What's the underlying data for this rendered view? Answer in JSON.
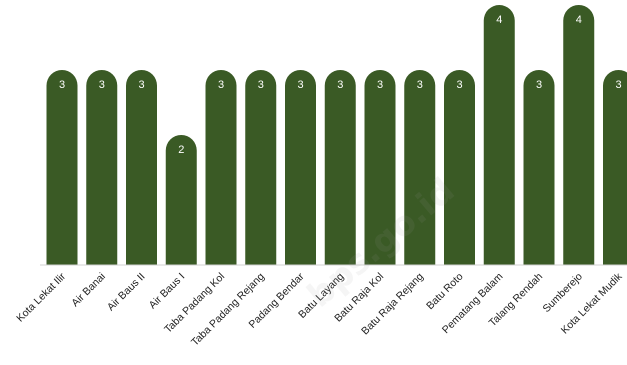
{
  "chart_data": {
    "type": "bar",
    "categories": [
      "Kota Lekat Ilir",
      "Air Banai",
      "Air Baus II",
      "Air Baus I",
      "Taba Padang Kol",
      "Taba Padang Rejang",
      "Padang Bendar",
      "Batu Layang",
      "Batu Raja Kol",
      "Batu Raja Rejang",
      "Batu Roto",
      "Pematang Balam",
      "Talang Rendah",
      "Sumberejo",
      "Kota Lekat Mudik"
    ],
    "values": [
      3,
      3,
      3,
      2,
      3,
      3,
      3,
      3,
      3,
      3,
      3,
      4,
      3,
      4,
      3
    ],
    "data_labels": [
      "3",
      "3",
      "3",
      "2",
      "3",
      "3",
      "3",
      "3",
      "3",
      "3",
      "3",
      "4",
      "3",
      "4",
      "3"
    ],
    "title": "",
    "xlabel": "",
    "ylabel": "",
    "ylim": [
      0,
      4
    ],
    "grid": false,
    "legend": "none",
    "colors": {
      "bar": "#3a5a25",
      "label": "#ffffff",
      "axis": "#d0d0d0",
      "tick": "#222222"
    }
  },
  "watermark": "bps.go.id"
}
